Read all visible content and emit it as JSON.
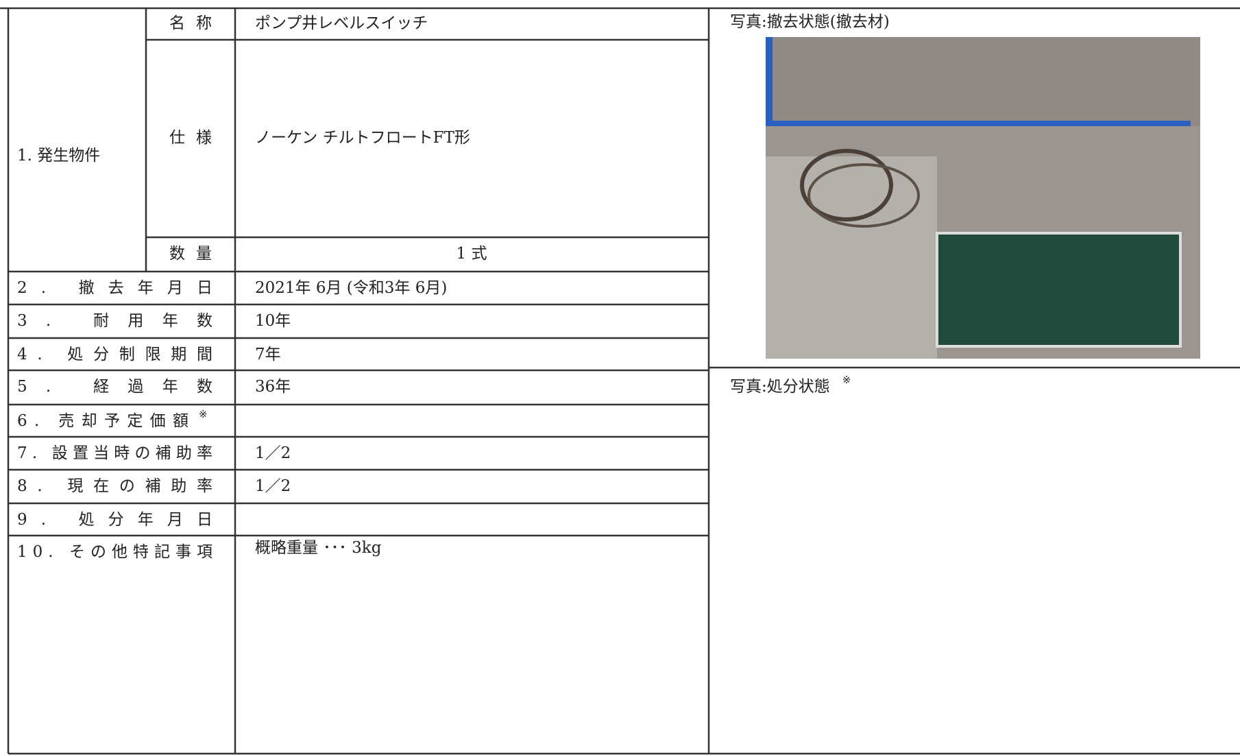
{
  "item": {
    "label": "1. 発生物件",
    "fields": [
      {
        "label": "名称",
        "value": "ポンプ井レベルスイッチ"
      },
      {
        "label": "仕様",
        "value": "ノーケン チルトフロートFT形"
      },
      {
        "label": "数量",
        "value": "1 式"
      }
    ]
  },
  "rows": [
    {
      "label": "2. 撤去年月日",
      "value": "2021年 6月 (令和3年 6月)"
    },
    {
      "label": "3. 耐用年数",
      "value": "10年"
    },
    {
      "label": "4. 処分制限期間",
      "value": "7年"
    },
    {
      "label": "5. 経過年数",
      "value": "36年"
    },
    {
      "label": "6. 売却予定価額",
      "note_mark": "※"
    },
    {
      "label": "7. 設置当時の補助率",
      "value": "1／2"
    },
    {
      "label": "8. 現在の補助率",
      "value": "1／2"
    },
    {
      "label": "9. 処分年月日"
    },
    {
      "label": "10. その他特記事項",
      "value": "概略重量 ･･･ 3kg"
    }
  ],
  "photos": [
    {
      "caption": "写真:撤去状態(撤去材)"
    },
    {
      "caption": "写真:処分状態",
      "note_mark": "※"
    }
  ]
}
